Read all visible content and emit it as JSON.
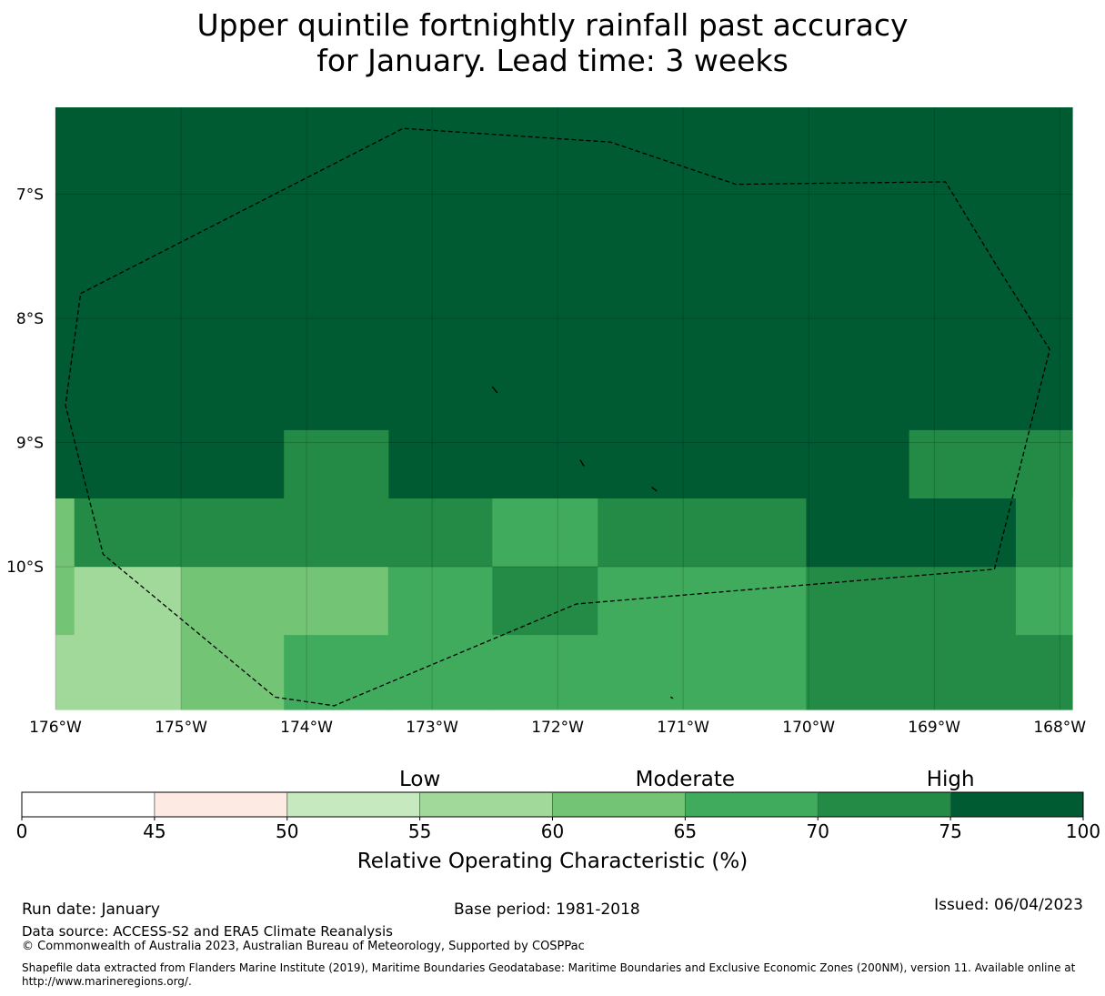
{
  "title": {
    "line1": "Upper quintile fortnightly rainfall past accuracy",
    "line2": "for January. Lead time: 3 weeks"
  },
  "map": {
    "lon_labels": [
      "176°W",
      "175°W",
      "174°W",
      "173°W",
      "172°W",
      "171°W",
      "170°W",
      "169°W",
      "168°W"
    ],
    "lat_labels": [
      "7°S",
      "8°S",
      "9°S",
      "10°S"
    ],
    "lon_range": [
      -176,
      -167.9
    ],
    "lat_range": [
      -11.15,
      -6.3
    ],
    "eez_boundary": [
      [
        -175.8,
        -7.8
      ],
      [
        -173.23,
        -6.47
      ],
      [
        -171.58,
        -6.58
      ],
      [
        -170.58,
        -6.92
      ],
      [
        -168.91,
        -6.9
      ],
      [
        -168.5,
        -7.58
      ],
      [
        -168.08,
        -8.25
      ],
      [
        -168.52,
        -10.02
      ],
      [
        -171.85,
        -10.3
      ],
      [
        -173.78,
        -11.12
      ],
      [
        -174.25,
        -11.05
      ],
      [
        -175.62,
        -9.9
      ],
      [
        -175.92,
        -8.7
      ],
      [
        -175.8,
        -7.8
      ]
    ],
    "islands": [
      [
        [
          -172.52,
          -8.55
        ],
        [
          -172.48,
          -8.6
        ]
      ],
      [
        [
          -171.82,
          -9.14
        ],
        [
          -171.79,
          -9.19
        ]
      ],
      [
        [
          -171.25,
          -9.36
        ],
        [
          -171.21,
          -9.39
        ]
      ],
      [
        [
          -171.1,
          -11.05
        ],
        [
          -171.08,
          -11.06
        ]
      ]
    ],
    "cells": [
      {
        "lon": [
          -176.0,
          -167.9
        ],
        "lat": [
          -9.45,
          -6.3
        ],
        "value": 80
      },
      {
        "lon": [
          -174.18,
          -173.35
        ],
        "lat": [
          -9.45,
          -8.9
        ],
        "value": 72
      },
      {
        "lon": [
          -169.2,
          -167.9
        ],
        "lat": [
          -9.45,
          -8.9
        ],
        "value": 72
      },
      {
        "lon": [
          -176.0,
          -175.85
        ],
        "lat": [
          -10.0,
          -9.45
        ],
        "value": 62
      },
      {
        "lon": [
          -175.85,
          -172.52
        ],
        "lat": [
          -10.0,
          -9.45
        ],
        "value": 72
      },
      {
        "lon": [
          -172.52,
          -171.68
        ],
        "lat": [
          -10.0,
          -9.45
        ],
        "value": 67
      },
      {
        "lon": [
          -171.68,
          -170.02
        ],
        "lat": [
          -10.0,
          -9.45
        ],
        "value": 72
      },
      {
        "lon": [
          -170.02,
          -168.35
        ],
        "lat": [
          -10.0,
          -9.45
        ],
        "value": 80
      },
      {
        "lon": [
          -168.35,
          -167.9
        ],
        "lat": [
          -10.0,
          -9.45
        ],
        "value": 72
      },
      {
        "lon": [
          -176.0,
          -175.85
        ],
        "lat": [
          -10.55,
          -10.0
        ],
        "value": 62
      },
      {
        "lon": [
          -176.0,
          -175.85
        ],
        "lat": [
          -11.15,
          -10.55
        ],
        "value": 57
      },
      {
        "lon": [
          -175.85,
          -175.0
        ],
        "lat": [
          -11.15,
          -10.0
        ],
        "value": 57
      },
      {
        "lon": [
          -175.0,
          -174.18
        ],
        "lat": [
          -11.15,
          -10.0
        ],
        "value": 62
      },
      {
        "lon": [
          -174.18,
          -173.35
        ],
        "lat": [
          -10.55,
          -10.0
        ],
        "value": 62
      },
      {
        "lon": [
          -174.18,
          -173.35
        ],
        "lat": [
          -11.15,
          -10.55
        ],
        "value": 67
      },
      {
        "lon": [
          -173.35,
          -172.52
        ],
        "lat": [
          -11.15,
          -10.0
        ],
        "value": 67
      },
      {
        "lon": [
          -172.52,
          -171.68
        ],
        "lat": [
          -10.55,
          -10.0
        ],
        "value": 72
      },
      {
        "lon": [
          -172.52,
          -171.68
        ],
        "lat": [
          -11.15,
          -10.55
        ],
        "value": 67
      },
      {
        "lon": [
          -171.68,
          -170.02
        ],
        "lat": [
          -11.15,
          -10.0
        ],
        "value": 67
      },
      {
        "lon": [
          -170.02,
          -168.35
        ],
        "lat": [
          -11.15,
          -10.0
        ],
        "value": 72
      },
      {
        "lon": [
          -168.35,
          -167.9
        ],
        "lat": [
          -10.55,
          -10.0
        ],
        "value": 67
      },
      {
        "lon": [
          -168.35,
          -167.9
        ],
        "lat": [
          -11.15,
          -10.55
        ],
        "value": 72
      }
    ]
  },
  "colorbar": {
    "boundaries": [
      0,
      45,
      50,
      55,
      60,
      65,
      70,
      75,
      100
    ],
    "tick_labels": [
      "0",
      "45",
      "50",
      "55",
      "60",
      "65",
      "70",
      "75",
      "100"
    ],
    "colors": [
      "#ffffff",
      "#fdebe3",
      "#c7e9c0",
      "#a1d99b",
      "#74c476",
      "#41ab5d",
      "#238b45",
      "#005a32"
    ],
    "category_labels": [
      "Low",
      "Moderate",
      "High"
    ],
    "category_values": [
      55,
      65,
      75
    ],
    "label": "Relative Operating Characteristic (%)"
  },
  "footer": {
    "run_date": "Run date: January",
    "base_period": "Base period: 1981-2018",
    "issued": "Issued: 06/04/2023",
    "data_source": "Data source: ACCESS-S2 and ERA5 Climate Reanalysis",
    "copyright": "© Commonwealth of Australia 2023, Australian Bureau of Meteorology, Supported by COSPPac",
    "shapefile_line1": "Shapefile data extracted from Flanders Marine Institute (2019), Maritime Boundaries Geodatabase: Maritime Boundaries and Exclusive Economic Zones (200NM), version 11. Available online at",
    "shapefile_line2": "http://www.marineregions.org/."
  }
}
